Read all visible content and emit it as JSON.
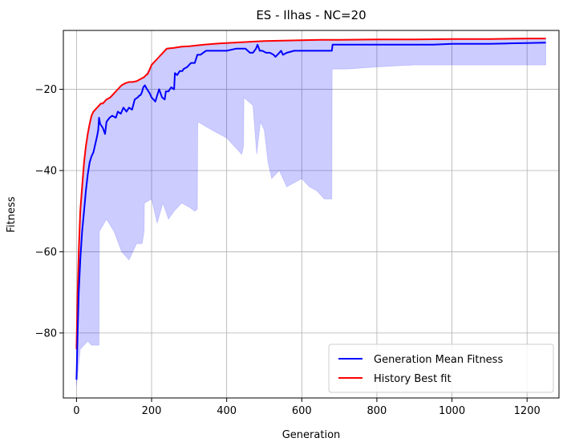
{
  "chart_data": {
    "type": "line",
    "title": "ES - Ilhas - NC=20",
    "xlabel": "Generation",
    "ylabel": "Fitness",
    "xlim": [
      -35,
      1285
    ],
    "ylim": [
      -96,
      -5.5
    ],
    "xticks": [
      0,
      200,
      400,
      600,
      800,
      1000,
      1200
    ],
    "yticks": [
      -80,
      -60,
      -40,
      -20
    ],
    "grid": true,
    "legend_position": "lower-right",
    "series": [
      {
        "name": "Generation Mean Fitness",
        "color": "#0000ff",
        "x": [
          0,
          3,
          6,
          10,
          15,
          20,
          25,
          30,
          35,
          40,
          45,
          50,
          55,
          58,
          60,
          63,
          70,
          76,
          80,
          88,
          95,
          105,
          110,
          118,
          125,
          133,
          140,
          148,
          155,
          163,
          168,
          170,
          173,
          175,
          178,
          182,
          188,
          195,
          200,
          205,
          210,
          215,
          220,
          228,
          235,
          238,
          245,
          252,
          260,
          262,
          268,
          275,
          282,
          285,
          295,
          305,
          315,
          322,
          330,
          345,
          360,
          375,
          400,
          425,
          450,
          462,
          470,
          478,
          482,
          488,
          495,
          505,
          515,
          525,
          530,
          540,
          545,
          550,
          560,
          580,
          600,
          620,
          640,
          660,
          680,
          682,
          700,
          750,
          800,
          850,
          900,
          950,
          1000,
          1050,
          1100,
          1150,
          1200,
          1250
        ],
        "y": [
          -91.5,
          -80,
          -70,
          -62,
          -55,
          -50,
          -45,
          -41,
          -38,
          -36.5,
          -35.5,
          -33.5,
          -31.5,
          -30,
          -27,
          -28.5,
          -29.5,
          -31,
          -28,
          -27,
          -26.5,
          -27,
          -25.5,
          -26,
          -24.5,
          -25.5,
          -24.5,
          -25,
          -22.5,
          -22,
          -21.5,
          -21.5,
          -21,
          -20.5,
          -19.5,
          -19,
          -20,
          -21,
          -22,
          -22.5,
          -23,
          -21.5,
          -20,
          -22,
          -22.5,
          -20.5,
          -20.5,
          -19.5,
          -20,
          -16,
          -16.5,
          -15.5,
          -15.5,
          -15,
          -14.5,
          -13.5,
          -13.5,
          -11.5,
          -11.5,
          -10.5,
          -10.5,
          -10.5,
          -10.5,
          -10,
          -10,
          -11,
          -11,
          -10,
          -9,
          -10.5,
          -10.5,
          -11,
          -11,
          -11.5,
          -12,
          -11,
          -10.5,
          -11.5,
          -11,
          -10.5,
          -10.5,
          -10.5,
          -10.5,
          -10.5,
          -10.5,
          -9,
          -9,
          -9,
          -9,
          -9,
          -9,
          -9,
          -8.8,
          -8.8,
          -8.8,
          -8.7,
          -8.6,
          -8.5
        ]
      },
      {
        "name": "History Best fit",
        "color": "#ff0000",
        "x": [
          0,
          3,
          6,
          10,
          15,
          20,
          25,
          30,
          35,
          40,
          45,
          50,
          55,
          60,
          65,
          70,
          80,
          90,
          100,
          110,
          120,
          130,
          140,
          150,
          160,
          170,
          180,
          185,
          190,
          200,
          210,
          220,
          230,
          240,
          260,
          280,
          300,
          320,
          340,
          380,
          420,
          460,
          500,
          550,
          600,
          650,
          700,
          800,
          900,
          1000,
          1100,
          1200,
          1250
        ],
        "y": [
          -84,
          -70,
          -60,
          -50,
          -44,
          -38,
          -34,
          -31,
          -28.5,
          -26.5,
          -25.5,
          -25,
          -24.5,
          -24,
          -23.5,
          -23.5,
          -22.5,
          -22,
          -21,
          -20,
          -19,
          -18.5,
          -18.2,
          -18.2,
          -18,
          -17.5,
          -17,
          -16.5,
          -16.2,
          -14,
          -13,
          -12,
          -11,
          -10,
          -9.8,
          -9.5,
          -9.4,
          -9.2,
          -9,
          -8.7,
          -8.5,
          -8.3,
          -8.1,
          -8,
          -7.9,
          -7.8,
          -7.8,
          -7.7,
          -7.7,
          -7.6,
          -7.6,
          -7.5,
          -7.5
        ]
      }
    ],
    "fill_band": {
      "color": "#0000ff",
      "x": [
        0,
        10,
        20,
        30,
        40,
        50,
        60,
        61,
        80,
        100,
        120,
        140,
        160,
        175,
        180,
        181,
        200,
        215,
        230,
        245,
        260,
        280,
        300,
        315,
        322,
        323,
        360,
        400,
        440,
        445,
        446,
        470,
        480,
        490,
        500,
        510,
        520,
        540,
        560,
        580,
        600,
        620,
        640,
        660,
        680,
        681,
        720,
        800,
        900,
        1000,
        1100,
        1200,
        1250
      ],
      "lower": [
        -93,
        -84,
        -83,
        -82,
        -83,
        -83,
        -83,
        -55,
        -52,
        -55,
        -60,
        -62,
        -58,
        -58,
        -55,
        -48,
        -47,
        -53,
        -48,
        -52,
        -50,
        -48,
        -49,
        -50,
        -49.5,
        -28,
        -30,
        -32,
        -36,
        -34,
        -22,
        -24,
        -36,
        -28,
        -30,
        -38,
        -42,
        -40,
        -44,
        -43,
        -42,
        -44,
        -45,
        -47,
        -47,
        -15,
        -15,
        -14.5,
        -14,
        -14,
        -14,
        -14,
        -14
      ]
    }
  }
}
